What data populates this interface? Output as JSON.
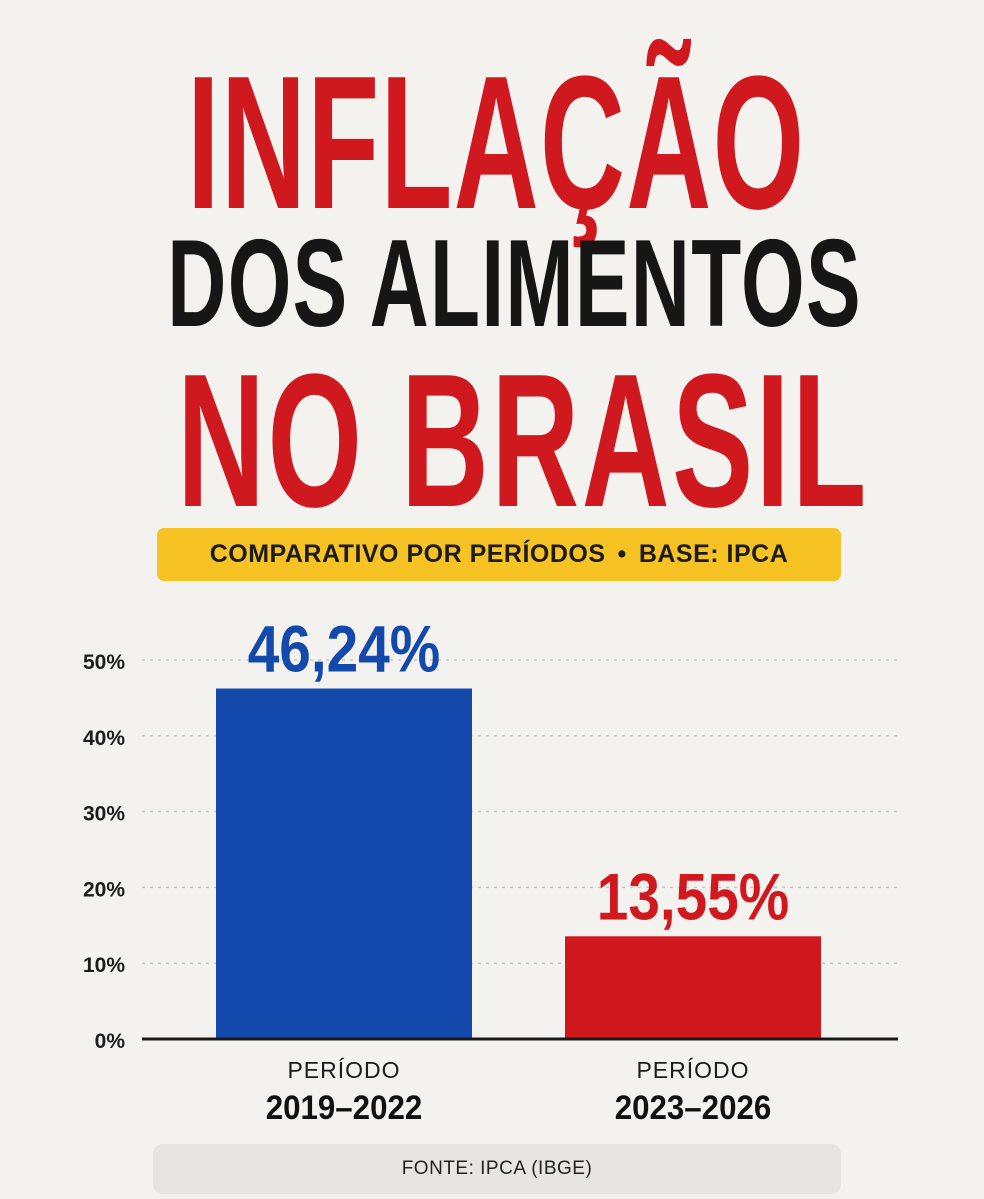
{
  "headline": {
    "line1": "INFLAÇÃO",
    "line2": "DOS ALIMENTOS",
    "line3": "NO BRASIL"
  },
  "subtitle": {
    "left": "COMPARATIVO POR PERÍODOS",
    "separator": "•",
    "right": "BASE: IPCA"
  },
  "colors": {
    "red": "#d0181f",
    "blue": "#1449ac",
    "yellow": "#f6c224",
    "text_dark": "#161616",
    "background": "#f4f2ef"
  },
  "chart_data": {
    "type": "bar",
    "title": "",
    "xlabel": "",
    "ylabel": "",
    "ylim": [
      0,
      50
    ],
    "yticks": [
      0,
      10,
      20,
      30,
      40,
      50
    ],
    "ytick_labels": [
      "0%",
      "10%",
      "20%",
      "30%",
      "40%",
      "50%"
    ],
    "grid": true,
    "categories": [
      {
        "label_top": "PERÍODO",
        "label_bottom": "2019–2022"
      },
      {
        "label_top": "PERÍODO",
        "label_bottom": "2023–2026"
      }
    ],
    "values": [
      46.24,
      13.55
    ],
    "value_labels": [
      "46,24%",
      "13,55%"
    ],
    "bar_colors": [
      "#1449ac",
      "#d0181f"
    ]
  },
  "source": "FONTE: IPCA (IBGE)"
}
